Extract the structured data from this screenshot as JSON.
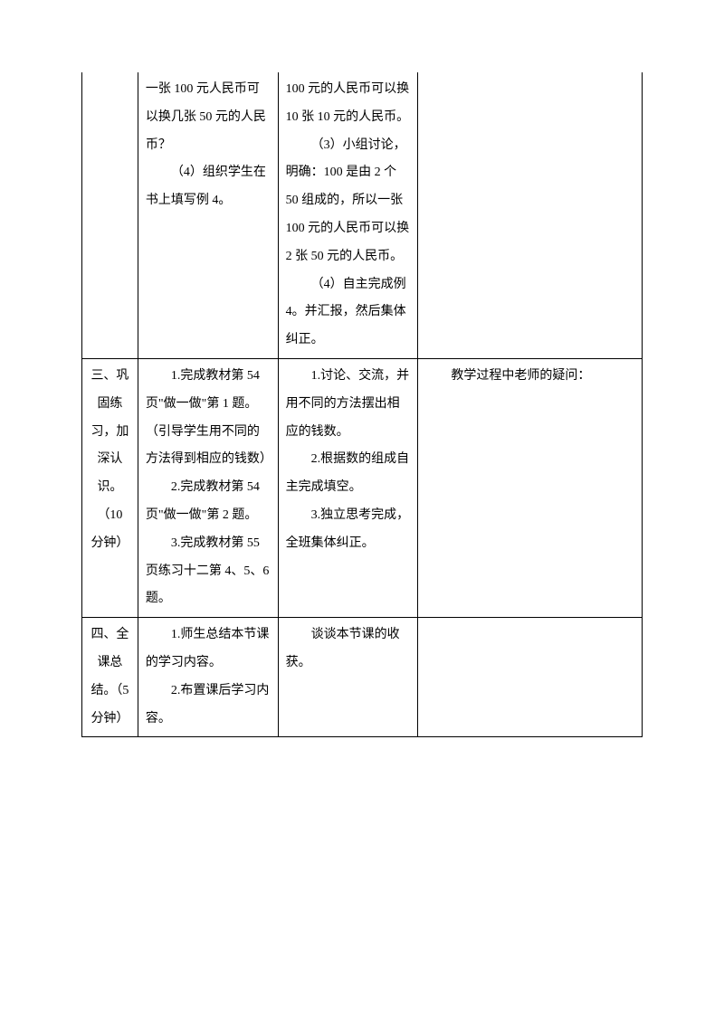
{
  "row1": {
    "col1": "",
    "col2_p1": "一张 100 元人民币可以换几张 50 元的人民币？",
    "col2_p2": "（4）组织学生在书上填写例 4。",
    "col3_p1": "100 元的人民币可以换 10 张 10 元的人民币。",
    "col3_p2": "（3）小组讨论，明确：100 是由 2 个 50 组成的，所以一张 100 元的人民币可以换 2 张 50 元的人民币。",
    "col3_p3": "（4）自主完成例 4。并汇报，然后集体纠正。",
    "col4": ""
  },
  "row2": {
    "col1": "三、巩固练习，加深认识。（10 分钟）",
    "col2_p1": "1.完成教材第 54 页\"做一做\"第 1 题。（引导学生用不同的方法得到相应的钱数）",
    "col2_p2": "2.完成教材第 54 页\"做一做\"第 2 题。",
    "col2_p3": "3.完成教材第 55 页练习十二第 4、5、6 题。",
    "col3_p1": "1.讨论、交流，并用不同的方法摆出相应的钱数。",
    "col3_p2": "2.根据数的组成自主完成填空。",
    "col3_p3": "3.独立思考完成，全班集体纠正。",
    "col4": "教学过程中老师的疑问："
  },
  "row3": {
    "col1": "四、全课总结。（5 分钟）",
    "col2_p1": "1.师生总结本节课的学习内容。",
    "col2_p2": "2.布置课后学习内容。",
    "col3_p1": "谈谈本节课的收获。",
    "col4": ""
  }
}
